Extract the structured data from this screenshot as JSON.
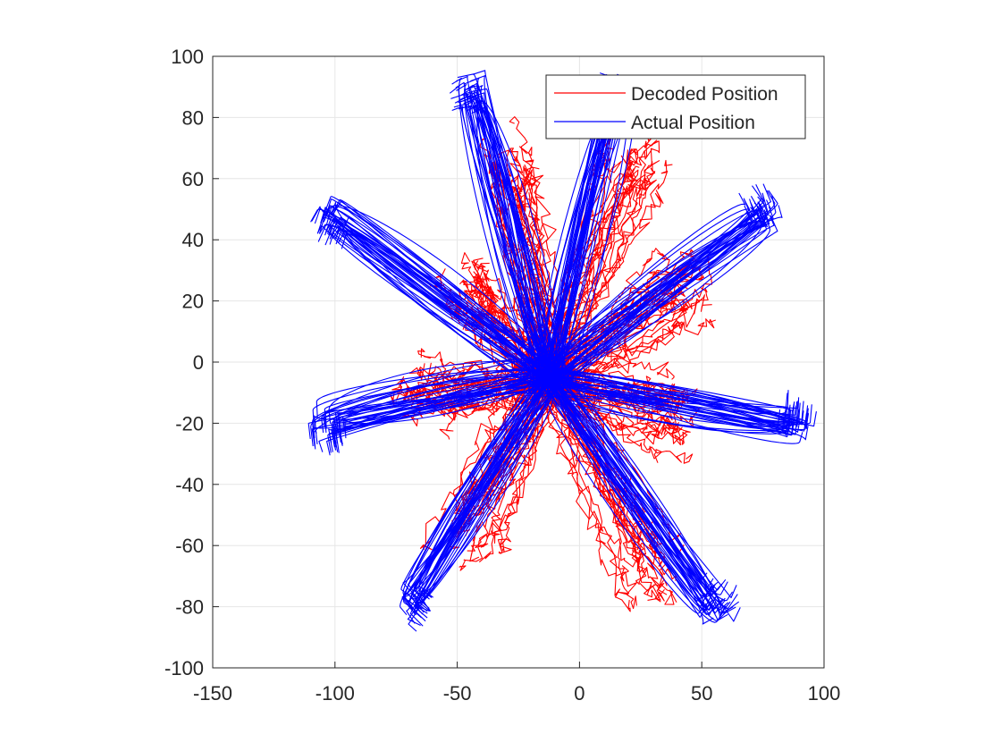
{
  "chart_data": {
    "type": "line",
    "title": "",
    "xlabel": "",
    "ylabel": "",
    "xlim": [
      -150,
      100
    ],
    "ylim": [
      -100,
      100
    ],
    "x_ticks": [
      -150,
      -100,
      -50,
      0,
      50,
      100
    ],
    "y_ticks": [
      -100,
      -80,
      -60,
      -40,
      -20,
      0,
      20,
      40,
      60,
      80,
      100
    ],
    "x_tick_labels": [
      "-150",
      "-100",
      "-50",
      "0",
      "50",
      "100"
    ],
    "y_tick_labels": [
      "-100",
      "-80",
      "-60",
      "-40",
      "-20",
      "0",
      "20",
      "40",
      "60",
      "80",
      "100"
    ],
    "grid": true,
    "legend_position": "top-right",
    "center": [
      -12,
      -5
    ],
    "series": [
      {
        "name": "Decoded Position",
        "color": "#ff0000",
        "trials_per_direction": 22,
        "directions": [
          {
            "angle": 30,
            "end": [
              45,
              25
            ]
          },
          {
            "angle": 70,
            "end": [
              25,
              65
            ]
          },
          {
            "angle": 110,
            "end": [
              -28,
              65
            ]
          },
          {
            "angle": 150,
            "end": [
              -45,
              25
            ]
          },
          {
            "angle": 190,
            "end": [
              -65,
              -10
            ]
          },
          {
            "angle": 230,
            "end": [
              -45,
              -55
            ]
          },
          {
            "angle": 310,
            "end": [
              30,
              -70
            ]
          },
          {
            "angle": 350,
            "end": [
              40,
              -18
            ]
          }
        ]
      },
      {
        "name": "Actual Position",
        "color": "#0000ff",
        "trials_per_direction": 40,
        "directions": [
          {
            "angle": 30,
            "end": [
              75,
              48
            ]
          },
          {
            "angle": 70,
            "end": [
              15,
              88
            ]
          },
          {
            "angle": 110,
            "end": [
              -43,
              88
            ]
          },
          {
            "angle": 150,
            "end": [
              -100,
              48
            ]
          },
          {
            "angle": 190,
            "end": [
              -103,
              -20
            ]
          },
          {
            "angle": 230,
            "end": [
              -68,
              -78
            ]
          },
          {
            "angle": 310,
            "end": [
              55,
              -80
            ]
          },
          {
            "angle": 350,
            "end": [
              88,
              -20
            ]
          }
        ]
      }
    ]
  }
}
